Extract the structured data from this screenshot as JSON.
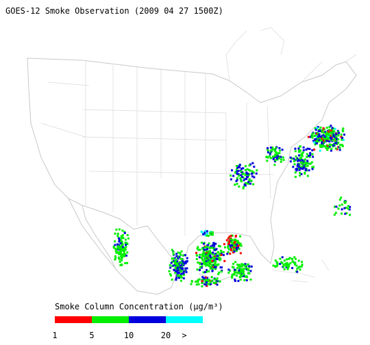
{
  "header": {
    "title": "GOES-12 Smoke Observation (2009 04 27  1500Z)"
  },
  "legend": {
    "title": "Smoke Column Concentration (μg/m³)",
    "colors": [
      "#ff0000",
      "#00ee00",
      "#0000dd",
      "#00ffff"
    ],
    "labels": [
      "1",
      "5",
      "10",
      "20",
      ">"
    ]
  }
}
